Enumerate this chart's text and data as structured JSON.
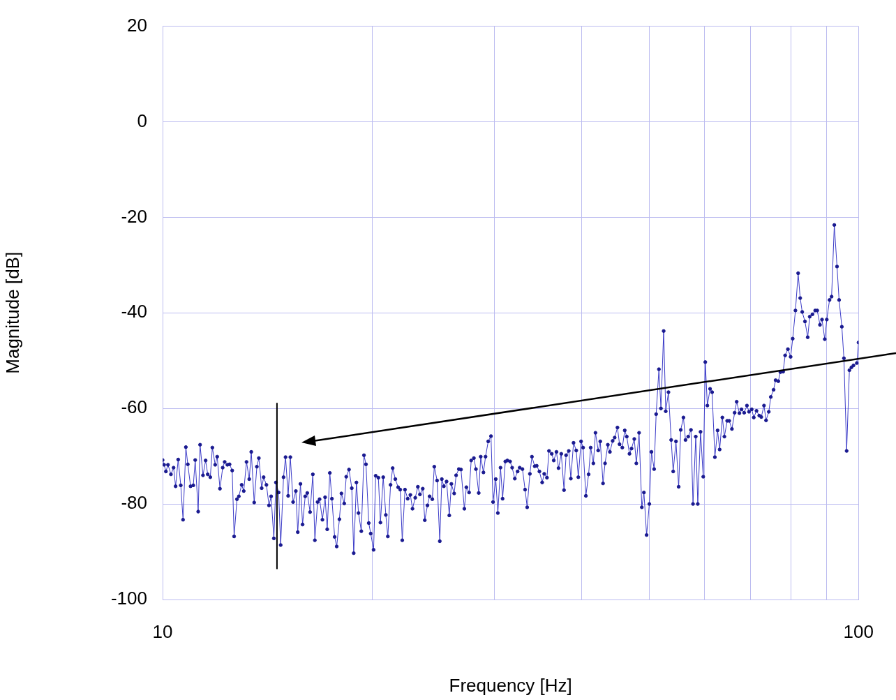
{
  "chart_data": {
    "type": "line",
    "xlabel": "Frequency [Hz]",
    "ylabel": "Magnitude [dB]",
    "log": "x",
    "grid": true,
    "legend": false,
    "marker": "circle",
    "line_style": "solid",
    "xlim": [
      10,
      100
    ],
    "ylim": [
      -100,
      20
    ],
    "xticks": [
      10,
      {
        "value": 20,
        "label": null
      },
      {
        "value": 30,
        "label": null
      },
      {
        "value": 40,
        "label": null
      },
      {
        "value": 50,
        "label": null
      },
      {
        "value": 60,
        "label": null
      },
      {
        "value": 70,
        "label": null
      },
      {
        "value": 80,
        "label": null
      },
      {
        "value": 90,
        "label": null
      },
      100
    ],
    "yticks": [
      -100,
      -80,
      -60,
      -40,
      -20,
      0,
      20
    ],
    "ref_lines": [
      {
        "axis": "x",
        "value": 14.6,
        "color": "#000000",
        "line_style": "solid"
      }
    ],
    "series": [
      {
        "color": "#3c3cc8",
        "x": [
          10.0,
          10.05,
          10.11,
          10.18,
          10.28,
          10.37,
          10.44,
          10.53,
          10.62,
          10.7,
          10.8,
          10.87,
          10.97,
          11.07,
          11.14,
          11.25,
          11.32,
          11.43,
          11.53,
          11.61,
          11.71,
          11.79,
          11.9,
          11.98,
          12.09,
          12.2,
          12.28,
          12.39,
          12.48,
          12.59,
          12.67,
          12.79,
          12.87,
          12.99,
          13.08,
          13.2,
          13.32,
          13.41,
          13.54,
          13.66,
          13.75,
          13.88,
          13.97,
          14.1,
          14.22,
          14.32,
          14.45,
          14.55,
          14.68,
          14.78,
          14.92,
          15.02,
          15.15,
          15.26,
          15.4,
          15.54,
          15.64,
          15.78,
          15.89,
          16.03,
          16.14,
          16.29,
          16.44,
          16.55,
          16.7,
          16.81,
          16.97,
          17.12,
          17.24,
          17.39,
          17.51,
          17.67,
          17.79,
          17.95,
          18.07,
          18.24,
          18.36,
          18.53,
          18.7,
          18.82,
          18.99,
          19.12,
          19.3,
          19.47,
          19.6,
          19.78,
          19.91,
          20.1,
          20.24,
          20.42,
          20.56,
          20.75,
          20.93,
          21.07,
          21.26,
          21.41,
          21.6,
          21.8,
          21.95,
          22.1,
          22.3,
          22.5,
          22.7,
          22.86,
          23.07,
          23.27,
          23.43,
          23.65,
          23.81,
          24.02,
          24.19,
          24.41,
          24.57,
          24.8,
          25.02,
          25.19,
          25.36,
          25.59,
          25.82,
          26.0,
          26.24,
          26.41,
          26.65,
          26.84,
          27.14,
          27.32,
          27.57,
          27.76,
          28.01,
          28.2,
          28.46,
          28.65,
          28.91,
          29.11,
          29.37,
          29.64,
          29.84,
          30.11,
          30.32,
          30.59,
          30.8,
          31.08,
          31.29,
          31.57,
          31.79,
          32.07,
          32.37,
          32.59,
          32.89,
          33.18,
          33.41,
          33.71,
          33.94,
          34.25,
          34.48,
          34.79,
          35.11,
          35.35,
          35.67,
          35.91,
          36.24,
          36.48,
          36.81,
          37.06,
          37.4,
          37.74,
          38.0,
          38.34,
          38.6,
          38.95,
          39.3,
          39.57,
          39.93,
          40.2,
          40.57,
          40.94,
          41.22,
          41.59,
          41.88,
          42.26,
          42.55,
          42.94,
          43.23,
          43.63,
          43.93,
          44.33,
          44.63,
          45.04,
          45.35,
          45.77,
          46.14,
          46.45,
          46.87,
          47.19,
          47.62,
          47.94,
          48.38,
          48.82,
          49.16,
          49.6,
          50.05,
          50.4,
          50.85,
          51.19,
          51.66,
          52.01,
          52.48,
          52.84,
          53.32,
          53.8,
          54.16,
          54.66,
          55.15,
          55.53,
          56.03,
          56.41,
          56.92,
          57.44,
          57.83,
          58.36,
          58.75,
          59.29,
          59.82,
          60.23,
          60.64,
          61.19,
          61.6,
          62.17,
          62.73,
          63.16,
          63.73,
          64.16,
          64.75,
          65.19,
          65.78,
          66.37,
          66.82,
          67.43,
          67.89,
          68.5,
          69.13,
          69.6,
          70.23,
          70.71,
          71.35,
          72.0,
          72.49,
          73.14,
          73.64,
          74.31,
          74.81,
          75.5,
          76.0,
          76.69,
          77.22,
          77.92,
          78.44,
          79.16,
          79.88,
          80.43,
          81.16,
          81.89,
          82.45,
          83.0,
          83.76,
          84.52,
          85.09,
          85.86,
          86.64,
          87.23,
          88.02,
          88.62,
          89.43,
          90.03,
          90.85,
          91.47,
          92.3,
          93.13,
          93.77,
          94.63,
          95.28,
          96.14,
          97.02,
          97.68,
          98.34,
          99.45,
          100.0
        ],
        "values": [
          -70.8,
          -71.8,
          -73.2,
          -71.8,
          -73.8,
          -72.4,
          -76.3,
          -70.7,
          -76.1,
          -83.3,
          -68.1,
          -71.7,
          -76.3,
          -76.1,
          -70.8,
          -81.6,
          -67.6,
          -74.0,
          -70.9,
          -73.8,
          -74.4,
          -68.2,
          -71.8,
          -70.1,
          -76.8,
          -72.4,
          -71.2,
          -71.8,
          -71.7,
          -73.0,
          -86.8,
          -79.0,
          -78.4,
          -76.0,
          -77.3,
          -71.2,
          -74.8,
          -69.1,
          -79.7,
          -72.2,
          -70.4,
          -76.7,
          -74.4,
          -76.0,
          -80.3,
          -78.4,
          -87.2,
          -75.5,
          -77.6,
          -88.6,
          -74.4,
          -70.2,
          -78.3,
          -70.2,
          -79.6,
          -77.3,
          -85.9,
          -75.8,
          -84.3,
          -78.4,
          -77.7,
          -81.7,
          -73.8,
          -87.6,
          -79.6,
          -79.0,
          -83.3,
          -78.6,
          -85.3,
          -73.5,
          -78.9,
          -86.9,
          -88.9,
          -83.2,
          -77.8,
          -79.9,
          -74.3,
          -72.8,
          -76.7,
          -90.3,
          -75.5,
          -81.9,
          -85.7,
          -69.8,
          -71.7,
          -84.0,
          -86.2,
          -89.6,
          -74.1,
          -74.5,
          -83.9,
          -74.4,
          -82.3,
          -86.8,
          -76.0,
          -72.5,
          -74.8,
          -76.5,
          -77.0,
          -87.6,
          -77.0,
          -78.9,
          -78.1,
          -81.0,
          -78.7,
          -76.4,
          -78.0,
          -76.8,
          -83.4,
          -80.3,
          -78.4,
          -79.0,
          -72.2,
          -75.1,
          -87.8,
          -74.8,
          -76.3,
          -75.3,
          -82.4,
          -75.8,
          -77.8,
          -74.0,
          -72.7,
          -72.8,
          -81.0,
          -76.5,
          -77.6,
          -70.9,
          -70.4,
          -72.7,
          -77.7,
          -70.1,
          -73.4,
          -70.1,
          -66.9,
          -65.8,
          -79.6,
          -74.8,
          -81.9,
          -72.4,
          -78.9,
          -71.1,
          -70.9,
          -71.1,
          -72.4,
          -74.7,
          -73.2,
          -72.4,
          -72.7,
          -77.0,
          -80.7,
          -73.7,
          -70.1,
          -72.1,
          -72.0,
          -73.2,
          -75.5,
          -73.7,
          -74.5,
          -68.9,
          -69.5,
          -70.9,
          -69.1,
          -72.5,
          -69.5,
          -77.1,
          -69.8,
          -68.9,
          -74.7,
          -67.2,
          -68.8,
          -74.4,
          -66.9,
          -68.2,
          -78.3,
          -73.8,
          -68.2,
          -71.5,
          -65.1,
          -68.8,
          -66.9,
          -75.7,
          -71.5,
          -67.6,
          -69.1,
          -66.8,
          -66.1,
          -64.0,
          -67.5,
          -68.2,
          -64.6,
          -65.9,
          -69.5,
          -68.4,
          -66.4,
          -71.5,
          -65.1,
          -80.7,
          -77.6,
          -86.5,
          -80.0,
          -69.1,
          -72.7,
          -61.2,
          -51.8,
          -60.0,
          -43.8,
          -60.6,
          -56.6,
          -66.6,
          -73.2,
          -66.9,
          -76.4,
          -64.5,
          -61.9,
          -66.6,
          -65.9,
          -64.5,
          -80.0,
          -65.9,
          -80.0,
          -64.9,
          -74.3,
          -50.3,
          -59.4,
          -55.9,
          -56.6,
          -70.2,
          -64.6,
          -68.6,
          -61.9,
          -65.9,
          -62.6,
          -62.6,
          -64.3,
          -60.9,
          -58.6,
          -61.0,
          -60.2,
          -60.9,
          -59.4,
          -60.7,
          -60.2,
          -61.9,
          -60.5,
          -61.5,
          -61.8,
          -59.4,
          -62.5,
          -60.7,
          -57.6,
          -56.1,
          -54.1,
          -54.3,
          -52.4,
          -52.3,
          -48.9,
          -47.6,
          -49.2,
          -45.4,
          -39.5,
          -31.7,
          -36.9,
          -39.8,
          -41.8,
          -45.1,
          -40.8,
          -40.3,
          -39.5,
          -39.5,
          -42.5,
          -41.4,
          -45.5,
          -41.4,
          -37.3,
          -36.6,
          -21.6,
          -30.3,
          -37.3,
          -42.9,
          -49.5,
          -68.9,
          -52.0,
          -51.4,
          -51.0,
          -50.5,
          -46.2
        ]
      }
    ]
  }
}
